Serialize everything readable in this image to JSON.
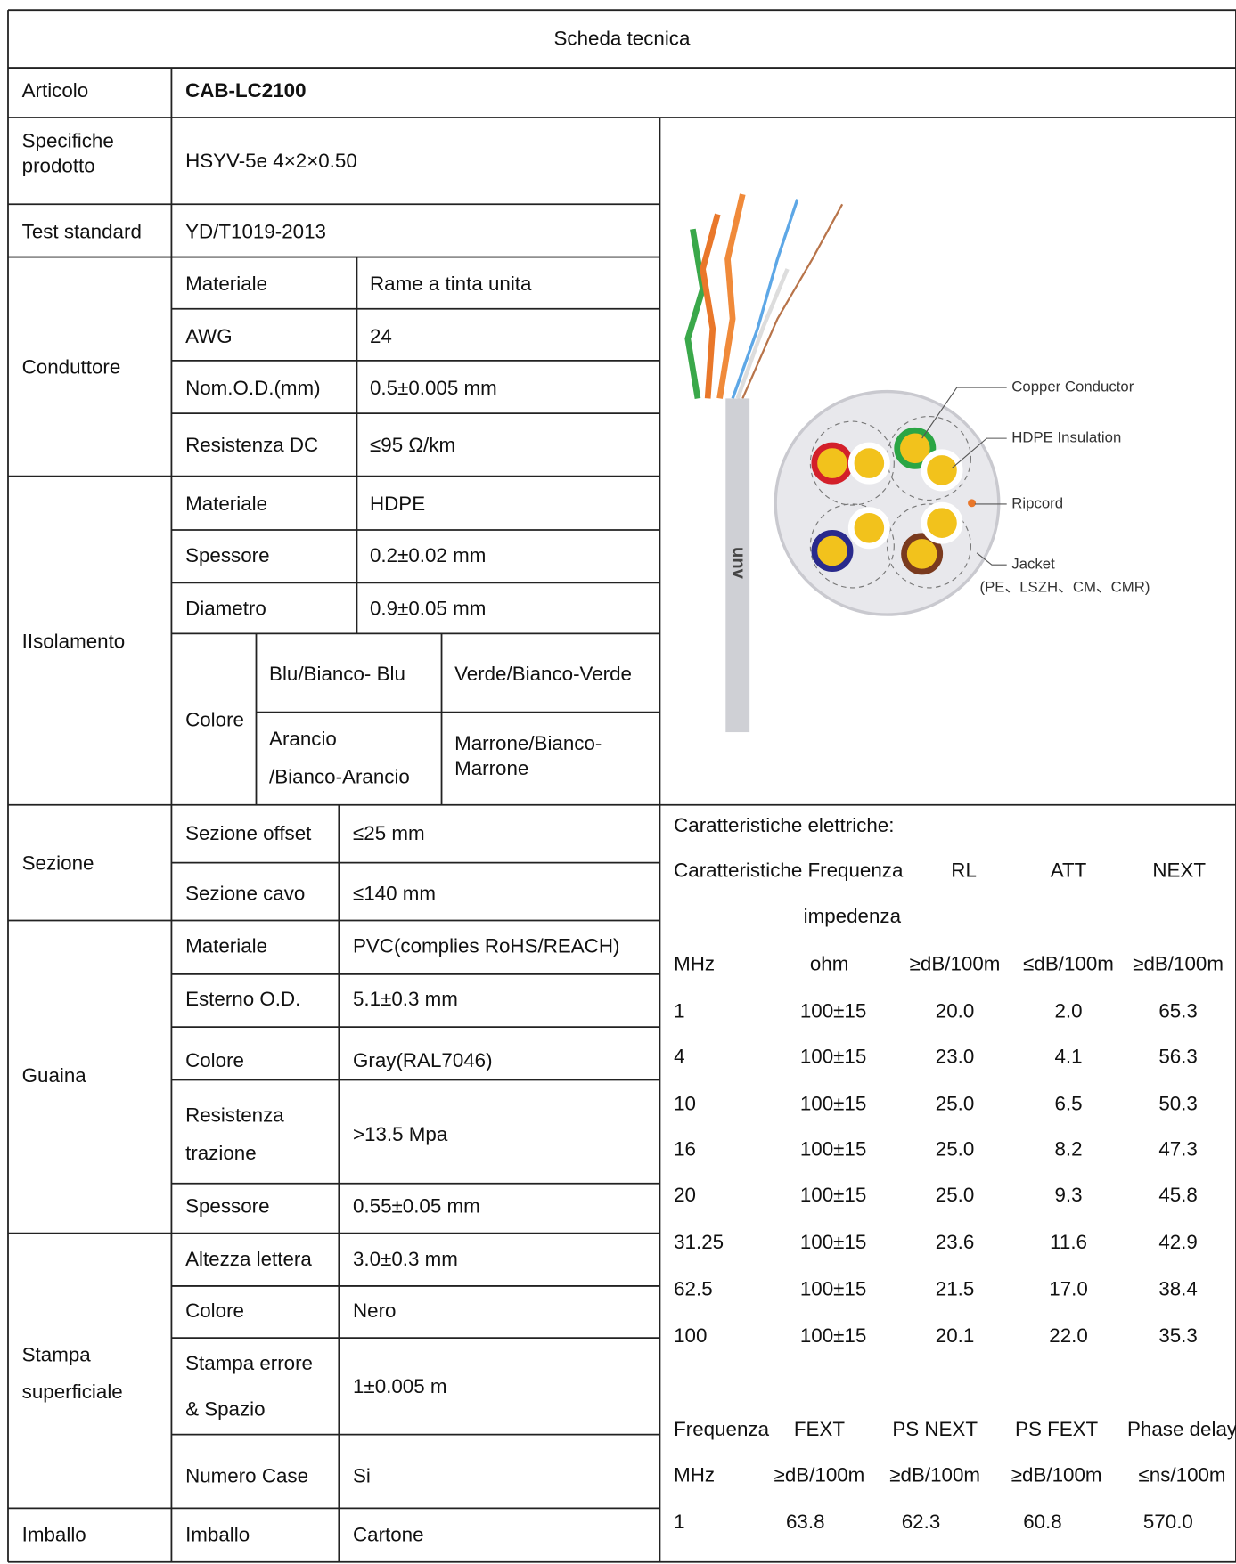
{
  "title": "Scheda tecnica",
  "article": {
    "label": "Articolo",
    "value": "CAB-LC2100"
  },
  "spec": {
    "label": [
      "Specifiche",
      "prodotto"
    ],
    "value": "HSYV-5e 4×2×0.50"
  },
  "test": {
    "label": "Test standard",
    "value": "YD/T1019-2013"
  },
  "conductor": {
    "label": "Conduttore",
    "rows": [
      [
        "Materiale",
        "Rame a tinta unita"
      ],
      [
        "AWG",
        "24"
      ],
      [
        "Nom.O.D.(mm)",
        "0.5±0.005 mm"
      ],
      [
        "Resistenza DC",
        "≤95 Ω/km"
      ]
    ]
  },
  "insulation": {
    "label": "IIsolamento",
    "rows": [
      [
        "Materiale",
        "HDPE"
      ],
      [
        "Spessore",
        "0.2±0.02 mm"
      ],
      [
        "Diametro",
        "0.9±0.05 mm"
      ]
    ],
    "color": {
      "label": "Colore",
      "cells": [
        [
          "Blu/Bianco- Blu"
        ],
        [
          "Verde/Bianco-Verde"
        ],
        [
          "Arancio",
          "/Bianco-Arancio"
        ],
        [
          "Marrone/Bianco-",
          "Marrone"
        ]
      ]
    }
  },
  "section": {
    "label": "Sezione",
    "rows": [
      [
        "Sezione offset",
        "≤25 mm"
      ],
      [
        "Sezione cavo",
        "≤140 mm"
      ]
    ]
  },
  "sheath": {
    "label": "Guaina",
    "rows": [
      [
        "Materiale",
        "PVC(complies RoHS/REACH)"
      ],
      [
        "Esterno O.D.",
        "5.1±0.3 mm"
      ],
      [
        "Colore",
        "Gray(RAL7046)"
      ],
      [
        [
          "Resistenza",
          "trazione"
        ],
        ">13.5 Mpa"
      ],
      [
        "Spessore",
        "0.55±0.05 mm"
      ]
    ]
  },
  "print": {
    "label": [
      "Stampa",
      "superficiale"
    ],
    "rows": [
      [
        "Altezza lettera",
        "3.0±0.3 mm"
      ],
      [
        "Colore",
        "Nero"
      ],
      [
        [
          "Stampa errore",
          "& Spazio"
        ],
        "1±0.005 m"
      ],
      [
        "Numero Case",
        "Si"
      ]
    ]
  },
  "packaging": {
    "label": "Imballo",
    "rows": [
      [
        "Imballo",
        "Cartone"
      ]
    ]
  },
  "figure": {
    "logo": "unv",
    "callouts": [
      "Copper Conductor",
      "HDPE Insulation",
      "Ripcord",
      "Jacket",
      "(PE、LSZH、CM、CMR)"
    ]
  },
  "electrical": {
    "title": "Caratteristiche elettriche:",
    "header": [
      "Caratteristiche Frequenza",
      "RL",
      "ATT",
      "NEXT"
    ],
    "header2": "impedenza",
    "units": [
      "MHz",
      "ohm",
      "≥dB/100m",
      "≤dB/100m",
      "≥dB/100m"
    ],
    "rows": [
      [
        "1",
        "100±15",
        "20.0",
        "2.0",
        "65.3"
      ],
      [
        "4",
        "100±15",
        "23.0",
        "4.1",
        "56.3"
      ],
      [
        "10",
        "100±15",
        "25.0",
        "6.5",
        "50.3"
      ],
      [
        "16",
        "100±15",
        "25.0",
        "8.2",
        "47.3"
      ],
      [
        "20",
        "100±15",
        "25.0",
        "9.3",
        "45.8"
      ],
      [
        "31.25",
        "100±15",
        "23.6",
        "11.6",
        "42.9"
      ],
      [
        "62.5",
        "100±15",
        "21.5",
        "17.0",
        "38.4"
      ],
      [
        "100",
        "100±15",
        "20.1",
        "22.0",
        "35.3"
      ]
    ],
    "table2": {
      "header": [
        "Frequenza",
        "FEXT",
        "PS NEXT",
        "PS FEXT",
        "Phase delay"
      ],
      "units": [
        "MHz",
        "≥dB/100m",
        "≥dB/100m",
        "≥dB/100m",
        "≤ns/100m"
      ],
      "rows": [
        [
          "1",
          "63.8",
          "62.3",
          "60.8",
          "570.0"
        ]
      ]
    }
  }
}
